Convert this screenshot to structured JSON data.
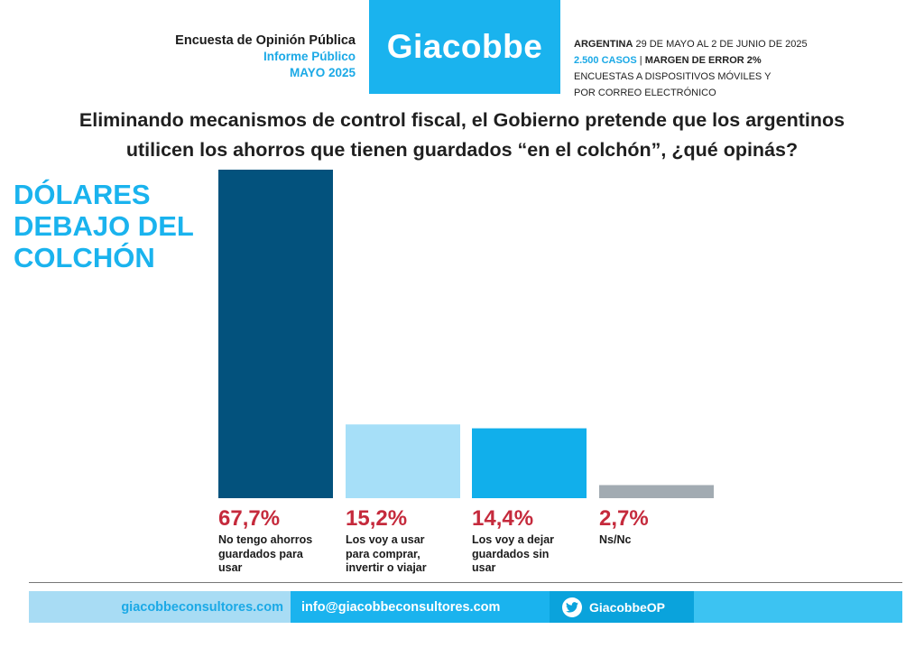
{
  "header": {
    "survey_title": "Encuesta de Opinión Pública",
    "report_label": "Informe Público",
    "date": "MAYO 2025",
    "brand": "Giacobbe",
    "info_country": "ARGENTINA",
    "info_dates": " 29 DE MAYO AL 2 DE JUNIO DE 2025",
    "info_cases": "2.500 CASOS",
    "info_sep": " | ",
    "info_margin": "MARGEN DE ERROR 2%",
    "info_method_1": "ENCUESTAS A DISPOSITIVOS MÓVILES Y",
    "info_method_2": "POR CORREO ELECTRÓNICO"
  },
  "question": {
    "line1": "Eliminando mecanismos de control fiscal, el Gobierno pretende que los argentinos",
    "line2": "utilicen los ahorros que tienen guardados “en el colchón”, ¿qué opinás?"
  },
  "chart_data": {
    "type": "bar",
    "title_lines": [
      "DÓLARES",
      "DEBAJO DEL",
      "COLCHÓN"
    ],
    "categories": [
      "No tengo ahorros guardados para usar",
      "Los voy a usar para comprar, invertir o viajar",
      "Los voy a dejar guardados sin usar",
      "Ns/Nc"
    ],
    "category_lines": [
      [
        "No tengo ahorros",
        "guardados para",
        "usar"
      ],
      [
        "Los voy a usar",
        "para comprar,",
        "invertir o viajar"
      ],
      [
        "Los voy a dejar",
        "guardados sin",
        "usar"
      ],
      [
        "Ns/Nc"
      ]
    ],
    "values": [
      67.7,
      15.2,
      14.4,
      2.7
    ],
    "value_labels": [
      "67,7%",
      "15,2%",
      "14,4%",
      "2,7%"
    ],
    "colors": [
      "#03527d",
      "#a6dff8",
      "#11afeb",
      "#a2abb2"
    ],
    "ylim": [
      0,
      67.7
    ],
    "grid": false
  },
  "footer": {
    "website": "giacobbeconsultores.com",
    "email": "info@giacobbeconsultores.com",
    "twitter_handle": "GiacobbeOP",
    "twitter_icon": "twitter-bird-icon"
  }
}
